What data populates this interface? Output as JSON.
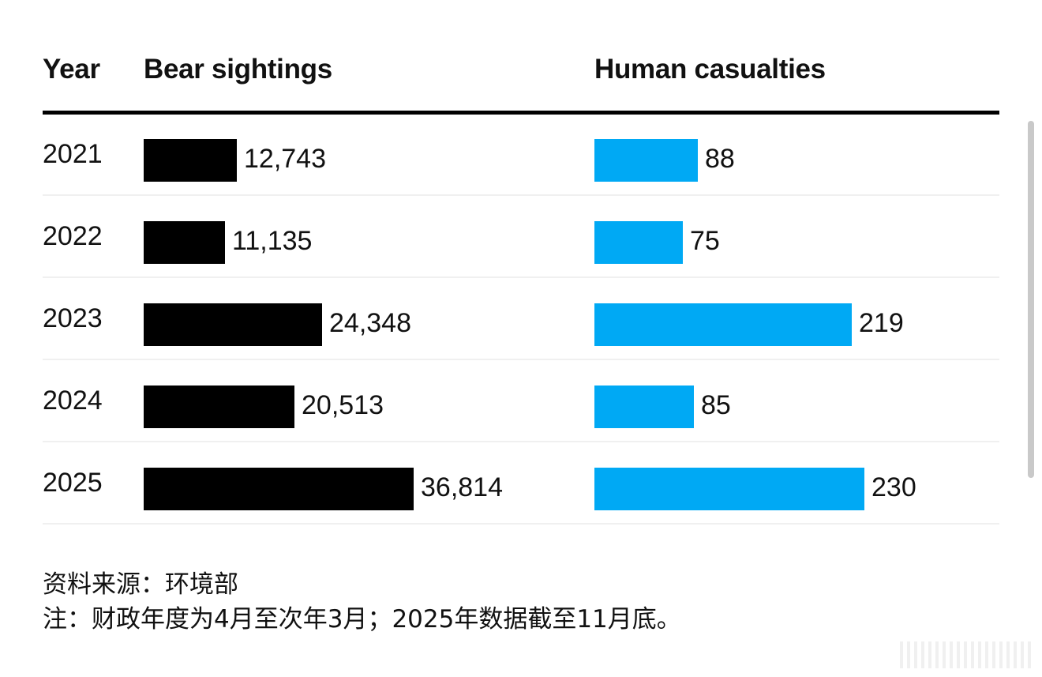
{
  "chart_data": {
    "type": "bar",
    "columns": {
      "year": "Year",
      "bear_sightings": "Bear sightings",
      "human_casualties": "Human casualties"
    },
    "categories": [
      "2021",
      "2022",
      "2023",
      "2024",
      "2025"
    ],
    "series": [
      {
        "name": "Bear sightings",
        "values": [
          12743,
          11135,
          24348,
          20513,
          36814
        ],
        "labels": [
          "12,743",
          "11,135",
          "24,348",
          "20,513",
          "36,814"
        ],
        "color": "#000000"
      },
      {
        "name": "Human casualties",
        "values": [
          88,
          75,
          219,
          85,
          230
        ],
        "labels": [
          "88",
          "75",
          "219",
          "85",
          "230"
        ],
        "color": "#00a9f4"
      }
    ],
    "notes": {
      "source": "资料来源：环境部",
      "footnote": "注：财政年度为4月至次年3月；2025年数据截至11月底。"
    }
  }
}
